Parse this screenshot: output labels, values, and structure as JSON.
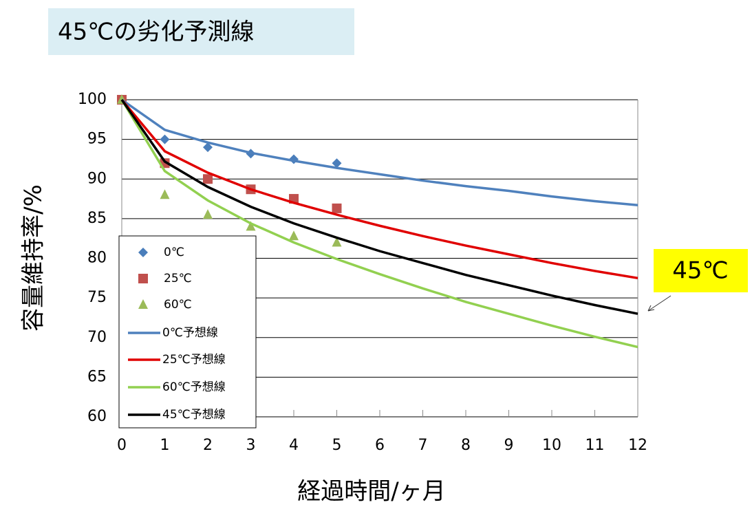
{
  "chart_data": {
    "type": "line",
    "title": "45℃の劣化予測線",
    "x_label": "経過時間/ヶ月",
    "y_label": "容量維持率/%",
    "annotation": "45℃",
    "x": [
      0,
      1,
      2,
      3,
      4,
      5,
      6,
      7,
      8,
      9,
      10,
      11,
      12
    ],
    "xlim": [
      0,
      12
    ],
    "xticks": [
      0,
      1,
      2,
      3,
      4,
      5,
      6,
      7,
      8,
      9,
      10,
      11,
      12
    ],
    "ylim": [
      60,
      100
    ],
    "yticks": [
      60,
      65,
      70,
      75,
      80,
      85,
      90,
      95,
      100
    ],
    "grid": true,
    "legend": "left",
    "series": [
      {
        "name": "0℃",
        "mode": "markers",
        "marker": "diamond",
        "color": "#4a7ebb",
        "values": [
          100,
          95,
          94,
          93.2,
          92.5,
          92,
          null,
          null,
          null,
          null,
          null,
          null,
          null
        ]
      },
      {
        "name": "25℃",
        "mode": "markers",
        "marker": "square",
        "color": "#c0504d",
        "values": [
          100,
          92,
          90,
          88.7,
          87.5,
          86.3,
          null,
          null,
          null,
          null,
          null,
          null,
          null
        ]
      },
      {
        "name": "60℃",
        "mode": "markers",
        "marker": "triangle",
        "color": "#9bbb59",
        "values": [
          100,
          88,
          85.5,
          84,
          82.8,
          82,
          null,
          null,
          null,
          null,
          null,
          null,
          null
        ]
      },
      {
        "name": "0℃予想線",
        "mode": "lines",
        "color": "#4f81bd",
        "values": [
          100,
          96.2,
          94.6,
          93.3,
          92.3,
          91.4,
          90.6,
          89.8,
          89.1,
          88.5,
          87.8,
          87.2,
          86.7
        ]
      },
      {
        "name": "25℃予想線",
        "mode": "lines",
        "color": "#e00000",
        "values": [
          100,
          93.5,
          90.8,
          88.7,
          87.0,
          85.5,
          84.1,
          82.8,
          81.6,
          80.5,
          79.4,
          78.4,
          77.5
        ]
      },
      {
        "name": "60℃予想線",
        "mode": "lines",
        "color": "#92d050",
        "values": [
          100,
          91.0,
          87.3,
          84.4,
          82.0,
          79.9,
          78.0,
          76.2,
          74.5,
          73.0,
          71.5,
          70.1,
          68.8
        ]
      },
      {
        "name": "45℃予想線",
        "mode": "lines",
        "color": "#000000",
        "values": [
          100,
          92.2,
          89.0,
          86.5,
          84.4,
          82.6,
          80.9,
          79.4,
          77.9,
          76.6,
          75.3,
          74.1,
          73.0
        ]
      }
    ]
  }
}
